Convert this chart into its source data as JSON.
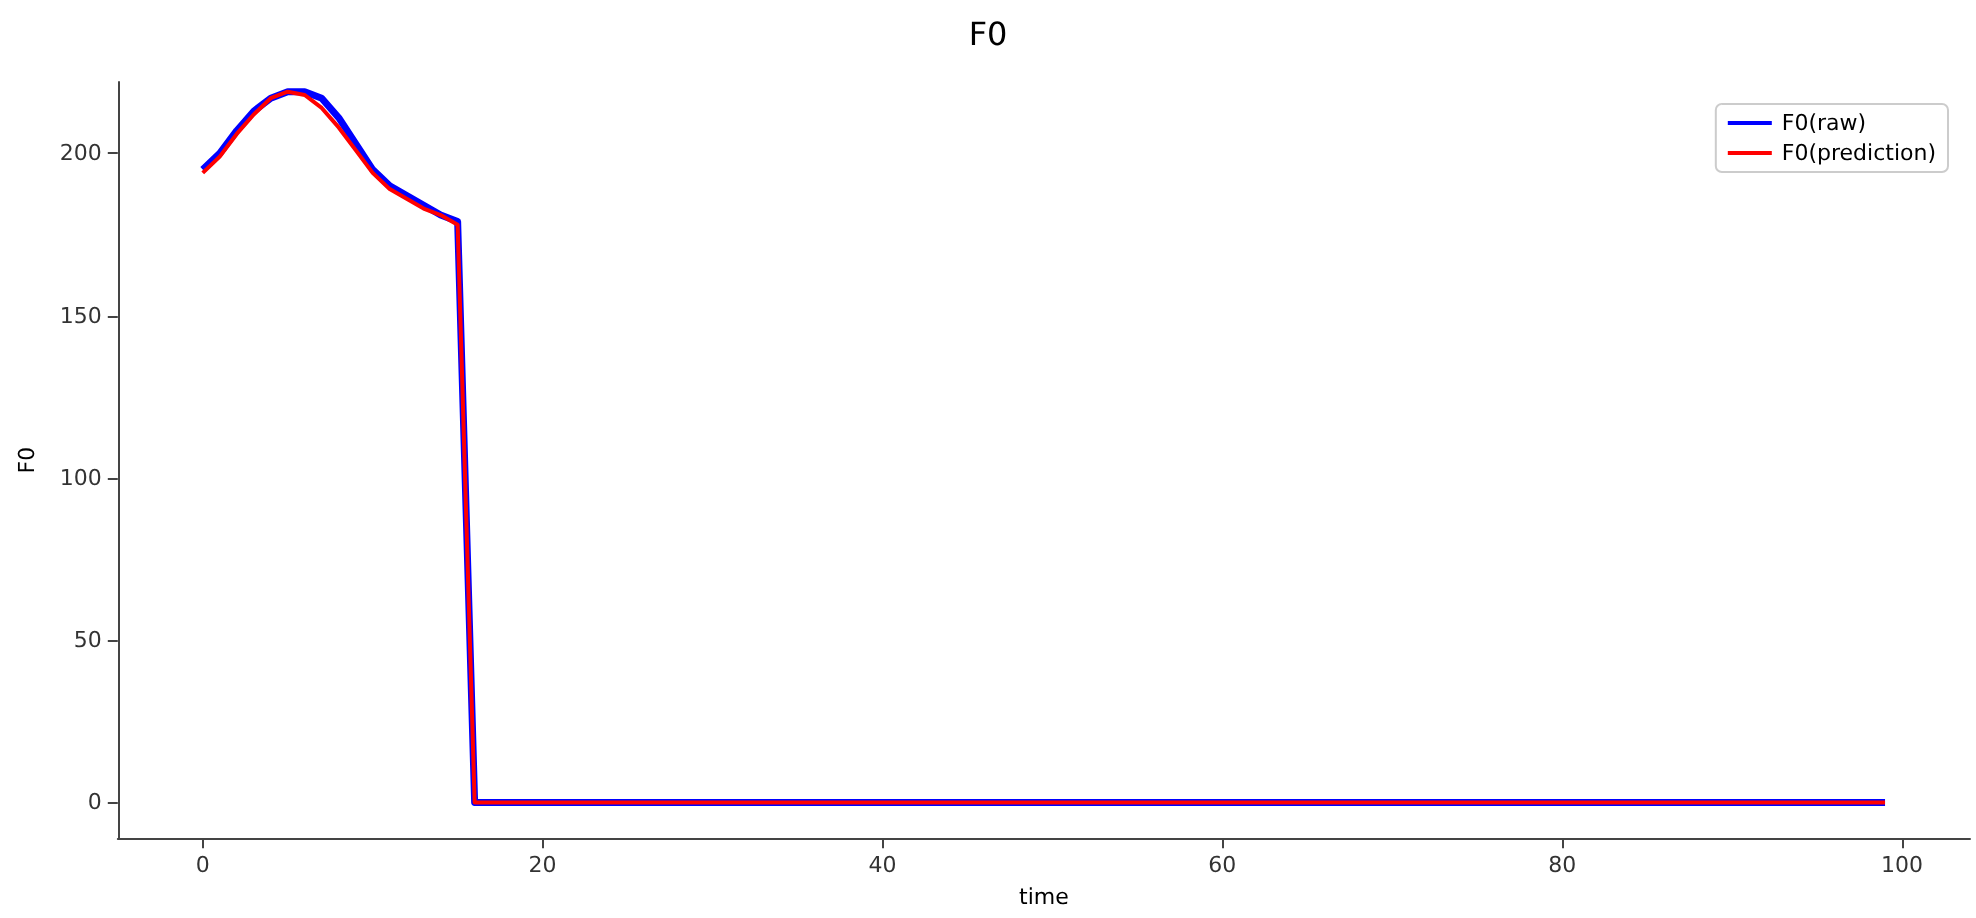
{
  "chart_data": {
    "type": "line",
    "title": "F0",
    "xlabel": "time",
    "ylabel": "F0",
    "x": [
      0,
      1,
      2,
      3,
      4,
      5,
      6,
      7,
      8,
      9,
      10,
      11,
      12,
      13,
      14,
      15,
      16,
      99
    ],
    "series": [
      {
        "name": "F0(raw)",
        "color": "#0000ff",
        "values": [
          195,
          200,
          207,
          213,
          217,
          219,
          219,
          217,
          211,
          203,
          195,
          190,
          187,
          184,
          181,
          179,
          0,
          0
        ]
      },
      {
        "name": "F0(prediction)",
        "color": "#ff0000",
        "values": [
          194,
          199,
          206,
          212,
          217,
          219,
          218,
          214,
          208,
          201,
          194,
          189,
          186,
          183,
          181,
          178,
          0,
          0
        ]
      }
    ],
    "xlim": [
      -5,
      104
    ],
    "xticks": [
      0,
      20,
      40,
      60,
      80,
      100
    ],
    "ylim": [
      -11,
      222
    ],
    "yticks": [
      0,
      50,
      100,
      150,
      200
    ],
    "grid": false,
    "legend": "top right",
    "marker": "none",
    "line_style": "solid"
  }
}
